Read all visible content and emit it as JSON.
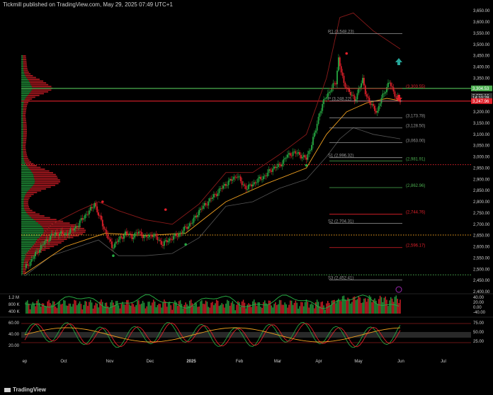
{
  "header": {
    "publisher": "Tickmill published on TradingView.com, May 29, 2025 07:49 UTC+1"
  },
  "footer": {
    "brand": "TradingView",
    "icon": "tradingview-logo-icon"
  },
  "colors": {
    "background": "#000000",
    "up": "#26a641",
    "down": "#e0202a",
    "resistance_line": "#4caf50",
    "support_line": "#e0202a",
    "envelope": "#8b1a1a",
    "pivot_grey": "#9a9a9a",
    "pivot_green": "#4caf50",
    "pivot_red": "#e0202a",
    "ma_orange": "#f0a020",
    "dotted_green": "#4caf50",
    "dotted_orange": "#f0a020",
    "dotted_red": "#e0202a"
  },
  "chart_data": [
    {
      "type": "candlestick",
      "panel": "price",
      "x_labels": [
        "ep",
        "Oct",
        "Nov",
        "Dec",
        "2025",
        "Feb",
        "Mar",
        "Apr",
        "May",
        "Jun",
        "Jul"
      ],
      "y_ticks": [
        "3,650.00",
        "3,600.00",
        "3,550.00",
        "3,500.00",
        "3,450.00",
        "3,400.00",
        "3,350.00",
        "3,300.00",
        "3,250.00",
        "3,200.00",
        "3,150.00",
        "3,100.00",
        "3,050.00",
        "3,000.00",
        "2,950.00",
        "2,900.00",
        "2,850.00",
        "2,800.00",
        "2,750.00",
        "2,700.00",
        "2,650.00",
        "2,600.00",
        "2,550.00",
        "2,500.00",
        "2,450.00",
        "2,400.00"
      ],
      "ylim": [
        2400,
        3660
      ],
      "price_labels": [
        {
          "value": 3304.53,
          "text": "3,304.53",
          "style": "green"
        },
        {
          "value": 3271.16,
          "text": "3,271.16",
          "style": "dark"
        },
        {
          "value": 3263.0,
          "text": "14:10:28",
          "style": "dark"
        },
        {
          "value": 3247.96,
          "text": "3,247.96",
          "style": "red"
        }
      ],
      "pivot_levels": [
        {
          "text": "R1 (3,548.23)",
          "value": 3548.23,
          "color": "grey"
        },
        {
          "text": "(3,303.55)",
          "value": 3303.55,
          "color": "red"
        },
        {
          "text": "P (3,248.22)",
          "value": 3248.22,
          "color": "grey"
        },
        {
          "text": "(3,173.78)",
          "value": 3173.78,
          "color": "grey"
        },
        {
          "text": "(3,128.50)",
          "value": 3128.5,
          "color": "grey"
        },
        {
          "text": "(3,063.00)",
          "value": 3063.0,
          "color": "grey"
        },
        {
          "text": "S1 (2,996.32)",
          "value": 2996.32,
          "color": "grey"
        },
        {
          "text": "(2,981.91)",
          "value": 2981.91,
          "color": "green"
        },
        {
          "text": "(2,862.96)",
          "value": 2862.96,
          "color": "green"
        },
        {
          "text": "(2,744.76)",
          "value": 2744.76,
          "color": "red"
        },
        {
          "text": "S2 (2,704.31)",
          "value": 2704.31,
          "color": "grey"
        },
        {
          "text": "(2,596.17)",
          "value": 2596.17,
          "color": "red"
        },
        {
          "text": "S3 (2,452.41)",
          "value": 2452.41,
          "color": "grey"
        }
      ],
      "horizontal_lines": [
        {
          "value": 3304.53,
          "style": "solid",
          "color": "green"
        },
        {
          "value": 3247.96,
          "style": "solid",
          "color": "red"
        },
        {
          "value": 2965,
          "style": "dotted",
          "color": "red"
        },
        {
          "value": 2652,
          "style": "dotted",
          "color": "orange"
        },
        {
          "value": 2475,
          "style": "dotted",
          "color": "green"
        }
      ],
      "close_path": [
        [
          0,
          2505
        ],
        [
          5,
          2540
        ],
        [
          10,
          2585
        ],
        [
          15,
          2620
        ],
        [
          20,
          2650
        ],
        [
          25,
          2660
        ],
        [
          30,
          2655
        ],
        [
          35,
          2672
        ],
        [
          40,
          2700
        ],
        [
          45,
          2740
        ],
        [
          50,
          2770
        ],
        [
          52,
          2795
        ],
        [
          55,
          2740
        ],
        [
          58,
          2700
        ],
        [
          62,
          2640
        ],
        [
          65,
          2600
        ],
        [
          70,
          2630
        ],
        [
          75,
          2660
        ],
        [
          80,
          2645
        ],
        [
          85,
          2665
        ],
        [
          90,
          2640
        ],
        [
          95,
          2655
        ],
        [
          100,
          2630
        ],
        [
          103,
          2610
        ],
        [
          107,
          2630
        ],
        [
          112,
          2645
        ],
        [
          117,
          2665
        ],
        [
          121,
          2690
        ],
        [
          125,
          2710
        ],
        [
          130,
          2760
        ],
        [
          135,
          2790
        ],
        [
          140,
          2820
        ],
        [
          145,
          2850
        ],
        [
          150,
          2880
        ],
        [
          155,
          2900
        ],
        [
          158,
          2920
        ],
        [
          162,
          2880
        ],
        [
          166,
          2860
        ],
        [
          170,
          2880
        ],
        [
          175,
          2900
        ],
        [
          180,
          2920
        ],
        [
          185,
          2950
        ],
        [
          190,
          2960
        ],
        [
          195,
          3000
        ],
        [
          200,
          3020
        ],
        [
          205,
          3010
        ],
        [
          210,
          2990
        ],
        [
          213,
          3040
        ],
        [
          217,
          3120
        ],
        [
          220,
          3200
        ],
        [
          224,
          3260
        ],
        [
          228,
          3300
        ],
        [
          232,
          3330
        ],
        [
          234,
          3440
        ],
        [
          236,
          3380
        ],
        [
          238,
          3320
        ],
        [
          240,
          3310
        ],
        [
          243,
          3280
        ],
        [
          246,
          3250
        ],
        [
          249,
          3300
        ],
        [
          252,
          3340
        ],
        [
          254,
          3290
        ],
        [
          257,
          3240
        ],
        [
          260,
          3220
        ],
        [
          263,
          3200
        ],
        [
          266,
          3260
        ],
        [
          269,
          3300
        ],
        [
          272,
          3330
        ],
        [
          275,
          3290
        ],
        [
          278,
          3260
        ],
        [
          280,
          3247
        ]
      ],
      "upper_band_path": [
        [
          0,
          2560
        ],
        [
          20,
          2700
        ],
        [
          40,
          2760
        ],
        [
          55,
          2800
        ],
        [
          70,
          2760
        ],
        [
          90,
          2720
        ],
        [
          110,
          2700
        ],
        [
          130,
          2790
        ],
        [
          150,
          2930
        ],
        [
          170,
          2930
        ],
        [
          190,
          3010
        ],
        [
          210,
          3100
        ],
        [
          225,
          3350
        ],
        [
          235,
          3620
        ],
        [
          245,
          3640
        ],
        [
          260,
          3560
        ],
        [
          280,
          3480
        ]
      ],
      "lower_band_path": [
        [
          0,
          2470
        ],
        [
          20,
          2560
        ],
        [
          40,
          2600
        ],
        [
          55,
          2630
        ],
        [
          70,
          2560
        ],
        [
          90,
          2560
        ],
        [
          110,
          2570
        ],
        [
          130,
          2640
        ],
        [
          150,
          2780
        ],
        [
          170,
          2800
        ],
        [
          190,
          2860
        ],
        [
          210,
          2900
        ],
        [
          225,
          3000
        ],
        [
          235,
          3080
        ],
        [
          245,
          3130
        ],
        [
          260,
          3100
        ],
        [
          280,
          3080
        ]
      ],
      "ma_path": [
        [
          0,
          2480
        ],
        [
          30,
          2600
        ],
        [
          60,
          2660
        ],
        [
          90,
          2650
        ],
        [
          120,
          2660
        ],
        [
          150,
          2800
        ],
        [
          180,
          2880
        ],
        [
          210,
          2950
        ],
        [
          225,
          3100
        ],
        [
          240,
          3200
        ],
        [
          255,
          3240
        ],
        [
          270,
          3260
        ],
        [
          280,
          3250
        ]
      ],
      "signal_dots": [
        {
          "i": 58,
          "value": 2800,
          "color": "red"
        },
        {
          "i": 66,
          "value": 2560,
          "color": "green"
        },
        {
          "i": 105,
          "value": 2765,
          "color": "red"
        },
        {
          "i": 120,
          "value": 2610,
          "color": "green"
        },
        {
          "i": 210,
          "value": 2962,
          "color": "green"
        },
        {
          "i": 240,
          "value": 3460,
          "color": "red"
        }
      ]
    },
    {
      "type": "bar",
      "panel": "volume",
      "y_ticks_left": [
        "1.2 M",
        "800 K",
        "400 K"
      ],
      "y_ticks_right": [
        "40.00",
        "20.00",
        "0.00",
        "-40.00"
      ]
    },
    {
      "type": "line",
      "panel": "oscillator",
      "y_ticks_left": [
        "60.00",
        "40.00",
        "20.00"
      ],
      "y_ticks_right": [
        "75.00",
        "50.00",
        "25.00"
      ]
    }
  ]
}
